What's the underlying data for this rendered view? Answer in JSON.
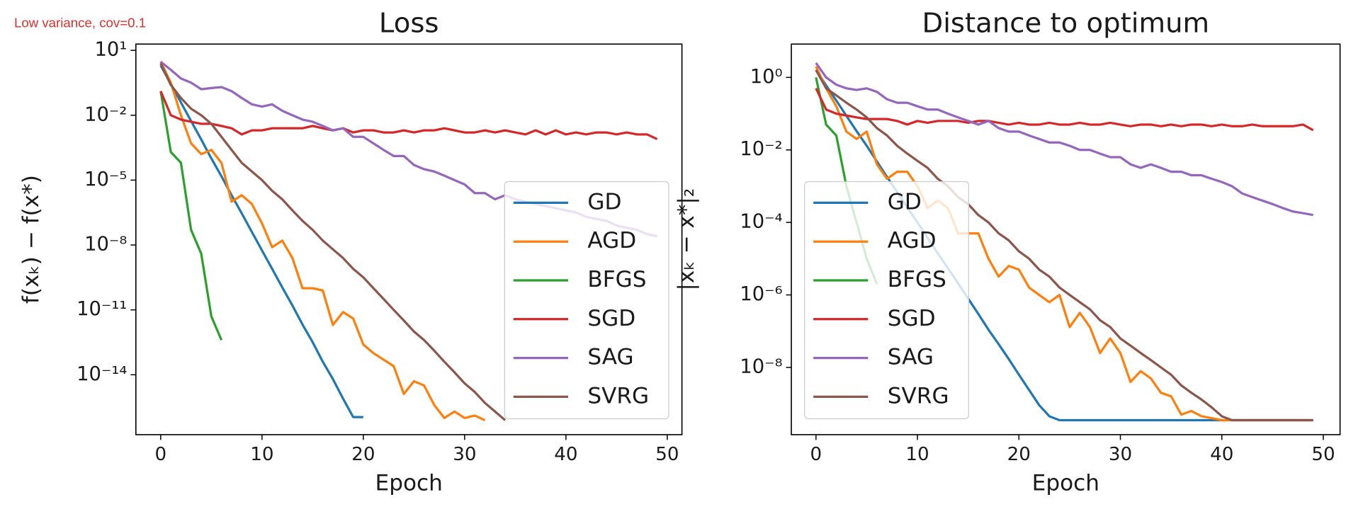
{
  "annotation": "Low variance, cov=0.1",
  "chart_data": [
    {
      "type": "line",
      "title": "Loss",
      "xlabel": "Epoch",
      "ylabel": "f(xₖ) − f(x*)",
      "log_y": true,
      "legend": "lower right",
      "x": [
        0,
        1,
        2,
        3,
        4,
        5,
        6,
        7,
        8,
        9,
        10,
        11,
        12,
        13,
        14,
        15,
        16,
        17,
        18,
        19,
        20,
        21,
        22,
        23,
        24,
        25,
        26,
        27,
        28,
        29,
        30,
        31,
        32,
        33,
        34,
        35,
        36,
        37,
        38,
        39,
        40,
        41,
        42,
        43,
        44,
        45,
        46,
        47,
        48,
        49
      ],
      "xlim": [
        -2.45,
        51.45
      ],
      "xticks": [
        0,
        10,
        20,
        30,
        40,
        50
      ],
      "ylim": [
        1.7e-17,
        19.5
      ],
      "yticks": [
        {
          "value": 10,
          "label": "10¹"
        },
        {
          "value": 0.01,
          "label": "10⁻²"
        },
        {
          "value": 1e-05,
          "label": "10⁻⁵"
        },
        {
          "value": 1e-08,
          "label": "10⁻⁸"
        },
        {
          "value": 1e-11,
          "label": "10⁻¹¹"
        },
        {
          "value": 1e-14,
          "label": "10⁻¹⁴"
        }
      ],
      "series": [
        {
          "name": "GD",
          "color": "#1f77b4",
          "values": [
            2.0,
            0.28,
            0.039,
            0.0054,
            0.00076,
            0.0001,
            1.5e-05,
            2e-06,
            2.9e-07,
            4e-08,
            5.6e-09,
            7.9e-10,
            1.1e-10,
            1.6e-11,
            2.1e-12,
            3.2e-13,
            4e-14,
            6.3e-15,
            7.9e-16,
            1.1e-16,
            1.1e-16,
            null,
            null,
            null,
            null,
            null,
            null,
            null,
            null,
            null,
            null,
            null,
            null,
            null,
            null,
            null,
            null,
            null,
            null,
            null,
            null,
            null,
            null,
            null,
            null,
            null,
            null,
            null,
            null,
            null
          ]
        },
        {
          "name": "AGD",
          "color": "#ff7f0e",
          "values": [
            3.0,
            0.32,
            0.01,
            0.0005,
            0.00016,
            0.00025,
            6.3e-05,
            1e-06,
            2e-06,
            7.9e-07,
            1e-07,
            7.9e-09,
            1.6e-08,
            2.5e-09,
            1e-10,
            1e-10,
            7.9e-11,
            2e-12,
            7.9e-12,
            4e-12,
            2.5e-13,
            1e-13,
            5e-14,
            2.5e-14,
            1.3e-15,
            5e-15,
            3.2e-15,
            4e-16,
            1e-16,
            2e-16,
            1e-16,
            1.3e-16,
            7.9e-17,
            null,
            null,
            null,
            null,
            null,
            null,
            null,
            null,
            null,
            null,
            null,
            null,
            null,
            null,
            null,
            null,
            null
          ]
        },
        {
          "name": "BFGS",
          "color": "#2ca02c",
          "values": [
            0.13,
            0.0002,
            6.3e-05,
            5e-08,
            4e-09,
            5e-12,
            4e-13,
            null,
            null,
            null,
            null,
            null,
            null,
            null,
            null,
            null,
            null,
            null,
            null,
            null,
            null,
            null,
            null,
            null,
            null,
            null,
            null,
            null,
            null,
            null,
            null,
            null,
            null,
            null,
            null,
            null,
            null,
            null,
            null,
            null,
            null,
            null,
            null,
            null,
            null,
            null,
            null,
            null,
            null,
            null
          ]
        },
        {
          "name": "SGD",
          "color": "#d62728",
          "values": [
            0.13,
            0.01,
            0.0063,
            0.005,
            0.004,
            0.004,
            0.0032,
            0.0025,
            0.0013,
            0.002,
            0.002,
            0.0025,
            0.0025,
            0.0025,
            0.0025,
            0.0032,
            0.0025,
            0.002,
            0.0025,
            0.0016,
            0.002,
            0.002,
            0.0016,
            0.0016,
            0.002,
            0.0016,
            0.002,
            0.002,
            0.0025,
            0.002,
            0.0016,
            0.0016,
            0.002,
            0.0016,
            0.002,
            0.0016,
            0.0013,
            0.002,
            0.0013,
            0.002,
            0.0013,
            0.0016,
            0.0013,
            0.0016,
            0.0016,
            0.0013,
            0.0016,
            0.0013,
            0.0013,
            0.00079
          ]
        },
        {
          "name": "SAG",
          "color": "#9467bd",
          "values": [
            3.0,
            1.26,
            0.5,
            0.32,
            0.16,
            0.18,
            0.2,
            0.13,
            0.063,
            0.032,
            0.025,
            0.032,
            0.016,
            0.01,
            0.0063,
            0.005,
            0.0032,
            0.002,
            0.0025,
            0.001,
            0.001,
            0.0005,
            0.00025,
            0.00013,
            0.00013,
            5e-05,
            3.2e-05,
            2.5e-05,
            1.6e-05,
            1e-05,
            6.3e-06,
            2.5e-06,
            2.5e-06,
            1.3e-06,
            2e-06,
            1.3e-06,
            1e-06,
            7.9e-07,
            6.3e-07,
            5e-07,
            4e-07,
            3.2e-07,
            2e-07,
            1.6e-07,
            1.3e-07,
            7.9e-08,
            6.3e-08,
            5e-08,
            3.2e-08,
            2.5e-08
          ]
        },
        {
          "name": "SVRG",
          "color": "#8c564b",
          "values": [
            2.5,
            0.25,
            0.063,
            0.02,
            0.01,
            0.004,
            0.001,
            0.00025,
            6.3e-05,
            2.5e-05,
            1e-05,
            3.2e-06,
            1.3e-06,
            4e-07,
            1.3e-07,
            5e-08,
            1.6e-08,
            6.3e-09,
            2.5e-09,
            7.9e-10,
            3.2e-10,
            1e-10,
            3.2e-11,
            1e-11,
            3.2e-12,
            1e-12,
            4e-13,
            1.3e-13,
            4e-14,
            1.3e-14,
            4e-15,
            1.6e-15,
            5e-16,
            2e-16,
            7.9e-17,
            null,
            null,
            null,
            null,
            null,
            null,
            null,
            null,
            null,
            null,
            null,
            null,
            null,
            null,
            null
          ]
        }
      ]
    },
    {
      "type": "line",
      "title": "Distance to optimum",
      "xlabel": "Epoch",
      "ylabel": "|xₖ − x*|₂",
      "log_y": true,
      "legend": "lower left",
      "x": [
        0,
        1,
        2,
        3,
        4,
        5,
        6,
        7,
        8,
        9,
        10,
        11,
        12,
        13,
        14,
        15,
        16,
        17,
        18,
        19,
        20,
        21,
        22,
        23,
        24,
        25,
        26,
        27,
        28,
        29,
        30,
        31,
        32,
        33,
        34,
        35,
        36,
        37,
        38,
        39,
        40,
        41,
        42,
        43,
        44,
        45,
        46,
        47,
        48,
        49
      ],
      "xlim": [
        -2.43,
        51.65
      ],
      "xticks": [
        0,
        10,
        20,
        30,
        40,
        50
      ],
      "ylim": [
        1.4e-10,
        8.3
      ],
      "yticks": [
        {
          "value": 1,
          "label": "10⁰"
        },
        {
          "value": 0.01,
          "label": "10⁻²"
        },
        {
          "value": 0.0001,
          "label": "10⁻⁴"
        },
        {
          "value": 1e-06,
          "label": "10⁻⁶"
        },
        {
          "value": 1e-08,
          "label": "10⁻⁸"
        }
      ],
      "series": [
        {
          "name": "GD",
          "color": "#1f77b4",
          "values": [
            1.6,
            0.6,
            0.23,
            0.087,
            0.033,
            0.013,
            0.0048,
            0.0018,
            0.00069,
            0.00026,
            0.0001,
            3.8e-05,
            1.4e-05,
            5.5e-06,
            2.1e-06,
            7.9e-07,
            3e-07,
            1.1e-07,
            4.4e-08,
            1.7e-08,
            6.3e-09,
            2.4e-09,
            9.1e-10,
            4.5e-10,
            3.5e-10,
            3.5e-10,
            3.5e-10,
            3.5e-10,
            3.5e-10,
            3.5e-10,
            3.5e-10,
            3.5e-10,
            3.5e-10,
            3.5e-10,
            3.5e-10,
            3.5e-10,
            3.5e-10,
            3.5e-10,
            3.5e-10,
            3.5e-10,
            3.5e-10,
            3.5e-10,
            3.5e-10,
            3.5e-10,
            3.5e-10,
            3.5e-10,
            3.5e-10,
            3.5e-10,
            3.5e-10,
            3.5e-10
          ]
        },
        {
          "name": "AGD",
          "color": "#ff7f0e",
          "values": [
            2.0,
            0.5,
            0.16,
            0.032,
            0.02,
            0.032,
            0.004,
            0.0016,
            0.0025,
            0.0025,
            0.001,
            0.00025,
            0.0004,
            0.00025,
            5e-05,
            5e-05,
            5e-05,
            1e-05,
            3.2e-06,
            6.3e-06,
            5e-06,
            1.6e-06,
            1e-06,
            6.3e-07,
            1e-06,
            1.3e-07,
            3.2e-07,
            1.3e-07,
            2.5e-08,
            6.3e-08,
            2.5e-08,
            4e-09,
            7.9e-09,
            5e-09,
            2e-09,
            1.6e-09,
            5e-10,
            6.3e-10,
            4.5e-10,
            4e-10,
            3.5e-10,
            3.5e-10,
            3.5e-10,
            3.5e-10,
            3.5e-10,
            3.5e-10,
            3.5e-10,
            3.5e-10,
            3.5e-10,
            3.5e-10
          ]
        },
        {
          "name": "BFGS",
          "color": "#2ca02c",
          "values": [
            1.0,
            0.05,
            0.025,
            0.001,
            0.0001,
            1e-05,
            2e-06,
            null,
            null,
            null,
            null,
            null,
            null,
            null,
            null,
            null,
            null,
            null,
            null,
            null,
            null,
            null,
            null,
            null,
            null,
            null,
            null,
            null,
            null,
            null,
            null,
            null,
            null,
            null,
            null,
            null,
            null,
            null,
            null,
            null,
            null,
            null,
            null,
            null,
            null,
            null,
            null,
            null,
            null,
            null
          ]
        },
        {
          "name": "SGD",
          "color": "#d62728",
          "values": [
            0.5,
            0.13,
            0.1,
            0.089,
            0.079,
            0.071,
            0.071,
            0.071,
            0.063,
            0.05,
            0.063,
            0.056,
            0.063,
            0.063,
            0.063,
            0.056,
            0.063,
            0.063,
            0.056,
            0.05,
            0.056,
            0.05,
            0.05,
            0.056,
            0.05,
            0.05,
            0.056,
            0.05,
            0.05,
            0.056,
            0.05,
            0.045,
            0.05,
            0.05,
            0.045,
            0.05,
            0.045,
            0.05,
            0.05,
            0.045,
            0.05,
            0.045,
            0.045,
            0.05,
            0.045,
            0.045,
            0.045,
            0.045,
            0.05,
            0.035
          ]
        },
        {
          "name": "SAG",
          "color": "#9467bd",
          "values": [
            2.5,
            1.0,
            0.63,
            0.5,
            0.45,
            0.5,
            0.4,
            0.25,
            0.2,
            0.2,
            0.16,
            0.13,
            0.13,
            0.1,
            0.079,
            0.063,
            0.05,
            0.063,
            0.04,
            0.032,
            0.032,
            0.025,
            0.02,
            0.016,
            0.016,
            0.013,
            0.01,
            0.01,
            0.0079,
            0.0063,
            0.0063,
            0.004,
            0.0032,
            0.004,
            0.0032,
            0.0025,
            0.0025,
            0.002,
            0.002,
            0.0016,
            0.0013,
            0.001,
            0.00063,
            0.0005,
            0.0004,
            0.00032,
            0.00025,
            0.0002,
            0.00018,
            0.00016
          ]
        },
        {
          "name": "SVRG",
          "color": "#8c564b",
          "values": [
            1.6,
            0.5,
            0.32,
            0.2,
            0.13,
            0.079,
            0.04,
            0.025,
            0.013,
            0.0079,
            0.005,
            0.0032,
            0.0016,
            0.001,
            0.0005,
            0.00032,
            0.00016,
            0.0001,
            5e-05,
            3.2e-05,
            1.6e-05,
            1e-05,
            5e-06,
            3.2e-06,
            1.6e-06,
            1e-06,
            6.3e-07,
            4e-07,
            2e-07,
            1.3e-07,
            6.3e-08,
            4e-08,
            2.5e-08,
            1.6e-08,
            1e-08,
            6.3e-09,
            3.2e-09,
            2e-09,
            1.3e-09,
            7.9e-10,
            4.5e-10,
            3.5e-10,
            3.5e-10,
            3.5e-10,
            3.5e-10,
            3.5e-10,
            3.5e-10,
            3.5e-10,
            3.5e-10,
            3.5e-10
          ]
        }
      ]
    }
  ]
}
